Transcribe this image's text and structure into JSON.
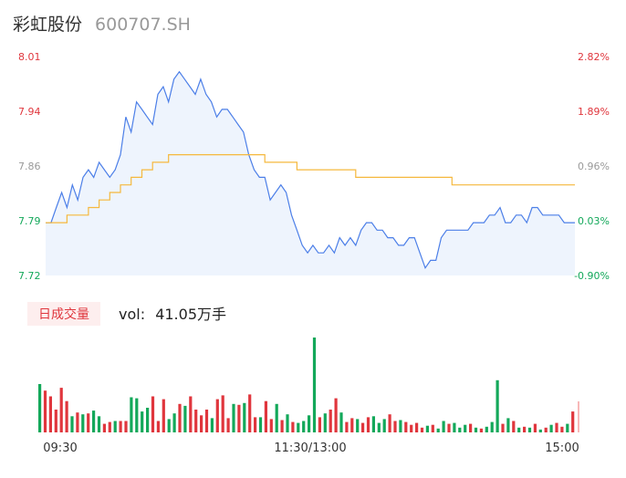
{
  "header": {
    "name": "彩虹股份",
    "code": "600707.SH"
  },
  "volume_tag": "日成交量",
  "volume_text": {
    "prefix": "vol:",
    "value": "41.05万手"
  },
  "colors": {
    "up": "#e0363d",
    "down": "#13a85a",
    "neutral": "#999999",
    "price_line": "#4c7fe8",
    "avg_line": "#f5b83d",
    "fill": "#eef4fd"
  },
  "chart_data": [
    {
      "type": "line",
      "title": "",
      "x_ticks": [
        "09:30",
        "11:30/13:00",
        "15:00"
      ],
      "ylim": [
        7.72,
        8.01
      ],
      "y_ticks_left": [
        "8.01",
        "7.94",
        "7.86",
        "7.79",
        "7.72"
      ],
      "y_ticks_right": [
        "2.82%",
        "1.89%",
        "0.96%",
        "0.03%",
        "-0.90%"
      ],
      "series": [
        {
          "values": [
            7.79,
            7.79,
            7.81,
            7.83,
            7.81,
            7.84,
            7.82,
            7.85,
            7.86,
            7.85,
            7.87,
            7.86,
            7.85,
            7.86,
            7.88,
            7.93,
            7.91,
            7.95,
            7.94,
            7.93,
            7.92,
            7.96,
            7.97,
            7.95,
            7.98,
            7.99,
            7.98,
            7.97,
            7.96,
            7.98,
            7.96,
            7.95,
            7.93,
            7.94,
            7.94,
            7.93,
            7.92,
            7.91,
            7.88,
            7.86,
            7.85,
            7.85,
            7.82,
            7.83,
            7.84,
            7.83,
            7.8,
            7.78,
            7.76,
            7.75,
            7.76,
            7.75,
            7.75,
            7.76,
            7.75,
            7.77,
            7.76,
            7.77,
            7.76,
            7.78,
            7.79,
            7.79,
            7.78,
            7.78,
            7.77,
            7.77,
            7.76,
            7.76,
            7.77,
            7.77,
            7.75,
            7.73,
            7.74,
            7.74,
            7.77,
            7.78,
            7.78,
            7.78,
            7.78,
            7.78,
            7.79,
            7.79,
            7.79,
            7.8,
            7.8,
            7.81,
            7.79,
            7.79,
            7.8,
            7.8,
            7.79,
            7.81,
            7.81,
            7.8,
            7.8,
            7.8,
            7.8,
            7.79,
            7.79,
            7.79
          ]
        },
        {
          "values": [
            7.79,
            7.79,
            7.79,
            7.79,
            7.8,
            7.8,
            7.8,
            7.8,
            7.81,
            7.81,
            7.82,
            7.82,
            7.83,
            7.83,
            7.84,
            7.84,
            7.85,
            7.85,
            7.86,
            7.86,
            7.87,
            7.87,
            7.87,
            7.88,
            7.88,
            7.88,
            7.88,
            7.88,
            7.88,
            7.88,
            7.88,
            7.88,
            7.88,
            7.88,
            7.88,
            7.88,
            7.88,
            7.88,
            7.88,
            7.88,
            7.88,
            7.87,
            7.87,
            7.87,
            7.87,
            7.87,
            7.87,
            7.86,
            7.86,
            7.86,
            7.86,
            7.86,
            7.86,
            7.86,
            7.86,
            7.86,
            7.86,
            7.86,
            7.85,
            7.85,
            7.85,
            7.85,
            7.85,
            7.85,
            7.85,
            7.85,
            7.85,
            7.85,
            7.85,
            7.85,
            7.85,
            7.85,
            7.85,
            7.85,
            7.85,
            7.85,
            7.84,
            7.84,
            7.84,
            7.84,
            7.84,
            7.84,
            7.84,
            7.84,
            7.84,
            7.84,
            7.84,
            7.84,
            7.84,
            7.84,
            7.84,
            7.84,
            7.84,
            7.84,
            7.84,
            7.84,
            7.84,
            7.84,
            7.84,
            7.84
          ]
        }
      ]
    },
    {
      "type": "bar",
      "title": "",
      "unit": "万手",
      "values": [
        0.51,
        0.44,
        0.38,
        0.24,
        0.47,
        0.33,
        0.17,
        0.21,
        0.19,
        0.2,
        0.23,
        0.17,
        0.09,
        0.11,
        0.12,
        0.12,
        0.12,
        0.37,
        0.36,
        0.22,
        0.26,
        0.38,
        0.12,
        0.35,
        0.14,
        0.2,
        0.3,
        0.28,
        0.38,
        0.24,
        0.18,
        0.24,
        0.15,
        0.35,
        0.39,
        0.15,
        0.3,
        0.29,
        0.31,
        0.4,
        0.16,
        0.16,
        0.33,
        0.14,
        0.3,
        0.13,
        0.19,
        0.11,
        0.1,
        0.12,
        0.18,
        1.0,
        0.16,
        0.2,
        0.24,
        0.36,
        0.21,
        0.11,
        0.15,
        0.14,
        0.1,
        0.16,
        0.17,
        0.1,
        0.14,
        0.19,
        0.12,
        0.13,
        0.11,
        0.08,
        0.1,
        0.05,
        0.07,
        0.08,
        0.04,
        0.12,
        0.09,
        0.1,
        0.05,
        0.08,
        0.09,
        0.05,
        0.04,
        0.06,
        0.11,
        0.55,
        0.09,
        0.15,
        0.12,
        0.05,
        0.06,
        0.05,
        0.09,
        0.03,
        0.05,
        0.08,
        0.1,
        0.06,
        0.09,
        0.22
      ],
      "up": [
        false,
        true,
        true,
        true,
        true,
        true,
        false,
        true,
        false,
        true,
        false,
        false,
        true,
        true,
        false,
        true,
        true,
        false,
        false,
        false,
        false,
        true,
        true,
        true,
        false,
        false,
        true,
        false,
        true,
        true,
        true,
        true,
        false,
        true,
        true,
        true,
        false,
        true,
        false,
        true,
        true,
        false,
        true,
        true,
        false,
        true,
        false,
        true,
        false,
        false,
        false,
        false,
        true,
        false,
        true,
        true,
        false,
        true,
        true,
        false,
        true,
        true,
        false,
        false,
        false,
        true,
        true,
        false,
        true,
        true,
        true,
        true,
        false,
        true,
        false,
        false,
        true,
        false,
        false,
        false,
        true,
        false,
        true,
        false,
        false,
        false,
        true,
        false,
        true,
        false,
        true,
        false,
        true,
        false,
        true,
        false,
        true,
        true,
        false,
        true
      ]
    }
  ]
}
